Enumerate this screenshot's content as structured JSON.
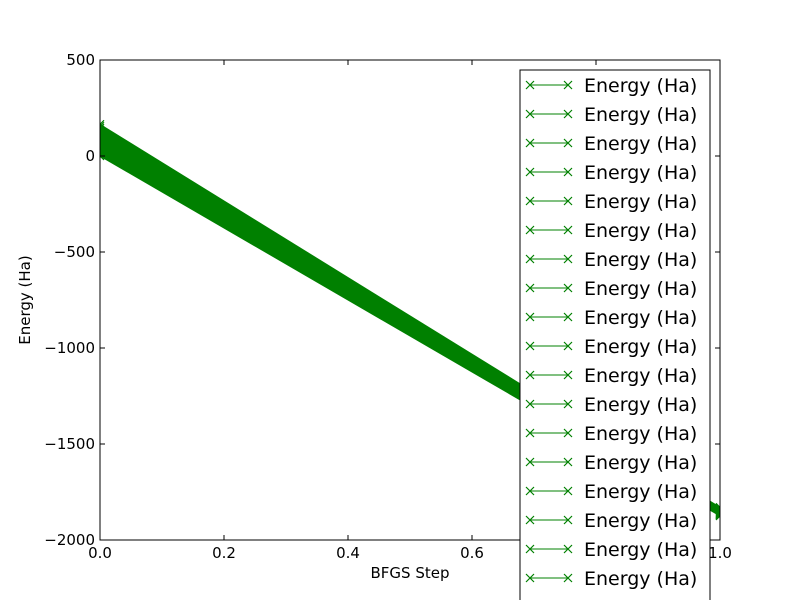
{
  "chart_data": {
    "type": "line",
    "xlabel": "BFGS Step",
    "ylabel": "Energy (Ha)",
    "xlim": [
      0.0,
      1.0
    ],
    "ylim": [
      -2000,
      500
    ],
    "xticks": [
      0.0,
      0.2,
      0.4,
      0.6,
      0.8,
      1.0
    ],
    "xtick_labels": [
      "0.0",
      "0.2",
      "0.4",
      "0.6",
      "0.8",
      "1.0"
    ],
    "yticks": [
      500,
      0,
      -500,
      -1000,
      -1500,
      -2000
    ],
    "ytick_labels": [
      "500",
      "0",
      "−500",
      "−1000",
      "−1500",
      "−2000"
    ],
    "grid": false,
    "legend_position": "top-right",
    "series_color": "#008000",
    "marker": "x",
    "band": {
      "x": [
        0.0,
        1.0
      ],
      "y_upper": [
        165,
        -1830
      ],
      "y_lower": [
        0,
        -1875
      ]
    },
    "series": [
      {
        "name": "Energy (Ha)",
        "x": [
          0.0,
          1.0
        ],
        "y": [
          165,
          -1830
        ]
      },
      {
        "name": "Energy (Ha)",
        "x": [
          0.0,
          1.0
        ],
        "y": [
          155,
          -1833
        ]
      },
      {
        "name": "Energy (Ha)",
        "x": [
          0.0,
          1.0
        ],
        "y": [
          145,
          -1836
        ]
      },
      {
        "name": "Energy (Ha)",
        "x": [
          0.0,
          1.0
        ],
        "y": [
          135,
          -1839
        ]
      },
      {
        "name": "Energy (Ha)",
        "x": [
          0.0,
          1.0
        ],
        "y": [
          125,
          -1842
        ]
      },
      {
        "name": "Energy (Ha)",
        "x": [
          0.0,
          1.0
        ],
        "y": [
          115,
          -1845
        ]
      },
      {
        "name": "Energy (Ha)",
        "x": [
          0.0,
          1.0
        ],
        "y": [
          105,
          -1848
        ]
      },
      {
        "name": "Energy (Ha)",
        "x": [
          0.0,
          1.0
        ],
        "y": [
          95,
          -1851
        ]
      },
      {
        "name": "Energy (Ha)",
        "x": [
          0.0,
          1.0
        ],
        "y": [
          85,
          -1854
        ]
      },
      {
        "name": "Energy (Ha)",
        "x": [
          0.0,
          1.0
        ],
        "y": [
          75,
          -1857
        ]
      },
      {
        "name": "Energy (Ha)",
        "x": [
          0.0,
          1.0
        ],
        "y": [
          65,
          -1860
        ]
      },
      {
        "name": "Energy (Ha)",
        "x": [
          0.0,
          1.0
        ],
        "y": [
          55,
          -1862
        ]
      },
      {
        "name": "Energy (Ha)",
        "x": [
          0.0,
          1.0
        ],
        "y": [
          45,
          -1864
        ]
      },
      {
        "name": "Energy (Ha)",
        "x": [
          0.0,
          1.0
        ],
        "y": [
          35,
          -1866
        ]
      },
      {
        "name": "Energy (Ha)",
        "x": [
          0.0,
          1.0
        ],
        "y": [
          25,
          -1868
        ]
      },
      {
        "name": "Energy (Ha)",
        "x": [
          0.0,
          1.0
        ],
        "y": [
          15,
          -1870
        ]
      },
      {
        "name": "Energy (Ha)",
        "x": [
          0.0,
          1.0
        ],
        "y": [
          8,
          -1872
        ]
      },
      {
        "name": "Energy (Ha)",
        "x": [
          0.0,
          1.0
        ],
        "y": [
          0,
          -1875
        ]
      }
    ]
  }
}
